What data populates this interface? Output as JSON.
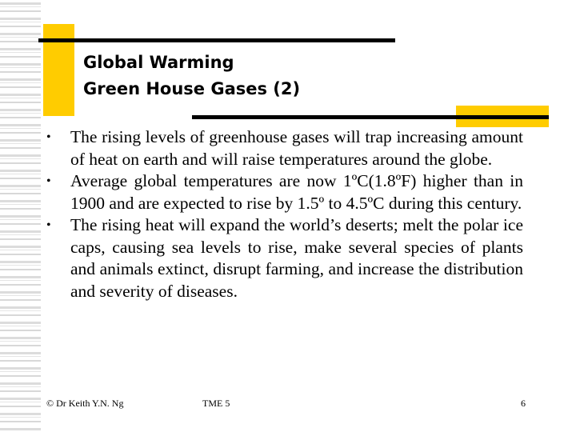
{
  "slide": {
    "title_lines": [
      "Global Warming",
      "Green House Gases (2)"
    ],
    "bullet_symbol": "•",
    "bullets": [
      "The rising levels of greenhouse gases will trap increasing amount of heat on earth and will raise temperatures around the globe.",
      "Average global temperatures are now 1ºC(1.8ºF) higher than in 1900 and are expected to rise by 1.5º to 4.5ºC during this century.",
      "The rising heat will expand the world’s deserts; melt the polar ice caps, causing sea levels to rise, make several species of plants and animals extinct,  disrupt farming, and increase the distribution and severity of diseases."
    ],
    "footer": {
      "author": "© Dr Keith Y.N. Ng",
      "course": "TME 5",
      "page_number": "6"
    },
    "colors": {
      "accent_yellow": "#FFCC00",
      "rule_black": "#000000",
      "stripe_gray": "#DCDCDC"
    }
  }
}
